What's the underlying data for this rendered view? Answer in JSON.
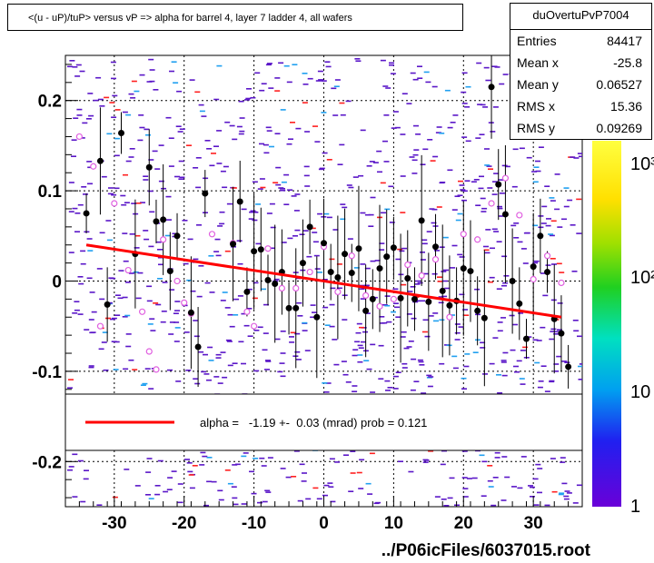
{
  "title": "<(u - uP)/tuP> versus  vP => alpha for barrel 4, layer 7 ladder 4, all wafers",
  "stats": {
    "name": "duOvertuPvP7004",
    "rows": [
      {
        "k": "Entries",
        "v": "84417"
      },
      {
        "k": "Mean x",
        "v": "-25.8"
      },
      {
        "k": "Mean y",
        "v": "0.06527"
      },
      {
        "k": "RMS x",
        "v": "15.36"
      },
      {
        "k": "RMS y",
        "v": "0.09269"
      }
    ]
  },
  "fit_legend": "alpha =   -1.19 +-  0.03 (mrad) prob = 0.121",
  "footer": "../P06icFiles/6037015.root",
  "colors": {
    "fit_line": "#ff0000",
    "scatter": "#5a16c8",
    "profile_points": "#000000",
    "open_markers": "#e060e0"
  },
  "chart_data": {
    "type": "scatter",
    "xlim": [
      -37,
      37
    ],
    "ylim": [
      -0.25,
      0.25
    ],
    "xticks": [
      "-30",
      "-20",
      "-10",
      "0",
      "10",
      "20",
      "30"
    ],
    "yticks": [
      "0.2",
      "0.1",
      "0",
      "-0.1",
      "-0.2"
    ],
    "grid": true,
    "z_scale": "log",
    "z_tick_labels": [
      "1",
      "10",
      "10²",
      "10³"
    ],
    "fit": {
      "x": [
        -34,
        34
      ],
      "y": [
        0.04,
        -0.04
      ]
    },
    "profile_filled": {
      "x": [
        -34,
        -32,
        -31,
        -29,
        -27,
        -25,
        -24,
        -23,
        -22,
        -21,
        -19,
        -18,
        -17,
        -13,
        -12,
        -11,
        -10,
        -9,
        -8,
        -7,
        -6,
        -5,
        -4,
        -3,
        -2,
        -1,
        0,
        1,
        2,
        3,
        4,
        5,
        6,
        7,
        8,
        9,
        10,
        11,
        12,
        13,
        14,
        15,
        16,
        17,
        18,
        19,
        20,
        21,
        22,
        23,
        24,
        25,
        26,
        27,
        28,
        29,
        30,
        31,
        32,
        33,
        34,
        35
      ],
      "y": [
        0.075,
        0.133,
        -0.026,
        0.164,
        0.03,
        0.126,
        0.066,
        0.068,
        0.011,
        0.05,
        -0.035,
        -0.073,
        0.097,
        0.041,
        0.088,
        -0.012,
        0.033,
        0.035,
        0.001,
        -0.003,
        0.01,
        -0.03,
        -0.03,
        0.02,
        0.06,
        -0.04,
        0.042,
        0.01,
        0.004,
        0.03,
        0.009,
        0.036,
        -0.033,
        -0.02,
        0.014,
        0.027,
        0.037,
        -0.019,
        0.003,
        -0.02,
        0.067,
        -0.023,
        0.038,
        -0.011,
        -0.027,
        -0.022,
        0.014,
        0.011,
        -0.033,
        -0.041,
        0.215,
        0.107,
        0.074,
        0.0,
        -0.025,
        -0.064,
        0.016,
        0.05,
        0.01,
        -0.042,
        -0.058,
        -0.095
      ]
    },
    "profile_open": {
      "x": [
        -35,
        -33,
        -32,
        -30,
        -28,
        -26,
        -25,
        -24,
        -23,
        -21,
        -20,
        -19,
        -16,
        -13,
        -11,
        -10,
        -8,
        -6,
        -4,
        -2,
        0,
        2,
        4,
        6,
        8,
        10,
        12,
        14,
        16,
        18,
        20,
        22,
        24,
        26,
        28,
        30,
        32,
        34
      ],
      "y": [
        0.16,
        0.127,
        -0.05,
        0.086,
        0.012,
        -0.034,
        -0.078,
        -0.098,
        0.046,
        0.0,
        -0.024,
        -0.036,
        0.052,
        0.042,
        -0.034,
        -0.05,
        0.036,
        -0.008,
        -0.008,
        0.01,
        0.038,
        -0.012,
        0.028,
        -0.016,
        -0.028,
        -0.02,
        0.018,
        0.006,
        0.024,
        -0.04,
        0.052,
        0.046,
        0.086,
        0.114,
        0.073,
        0.002,
        0.028,
        -0.002
      ]
    }
  }
}
